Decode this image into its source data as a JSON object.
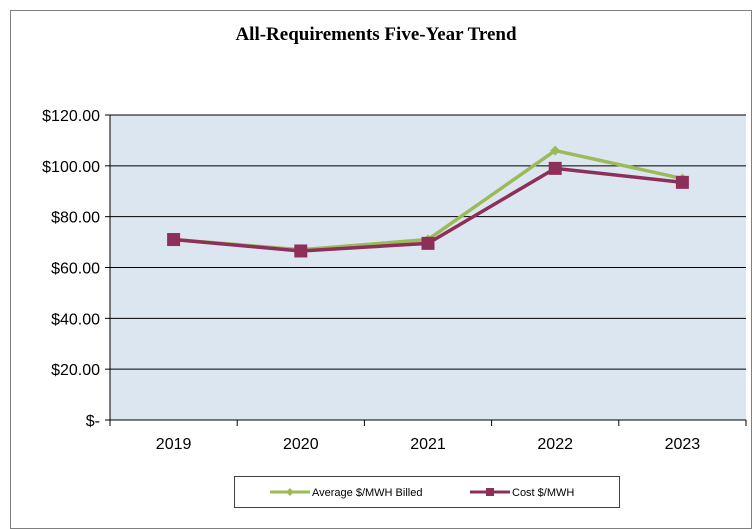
{
  "chart_data": {
    "type": "line",
    "title": "All-Requirements Five-Year Trend",
    "categories": [
      "2019",
      "2020",
      "2021",
      "2022",
      "2023"
    ],
    "y_tick_labels": [
      "$-",
      "$20.00",
      "$40.00",
      "$60.00",
      "$80.00",
      "$100.00",
      "$120.00"
    ],
    "y_ticks": [
      0,
      20,
      40,
      60,
      80,
      100,
      120
    ],
    "ylim": [
      0,
      120
    ],
    "grid": true,
    "legend_position": "bottom",
    "series": [
      {
        "name": "Average $/MWH Billed",
        "values": [
          71,
          67,
          71,
          106,
          95
        ],
        "color": "#9bbb59",
        "marker": "diamond"
      },
      {
        "name": "Cost $/MWH",
        "values": [
          71,
          66.5,
          69.5,
          99,
          93.5
        ],
        "color": "#8e2f5a",
        "marker": "square"
      }
    ],
    "plot_background": "#dce6f1"
  }
}
